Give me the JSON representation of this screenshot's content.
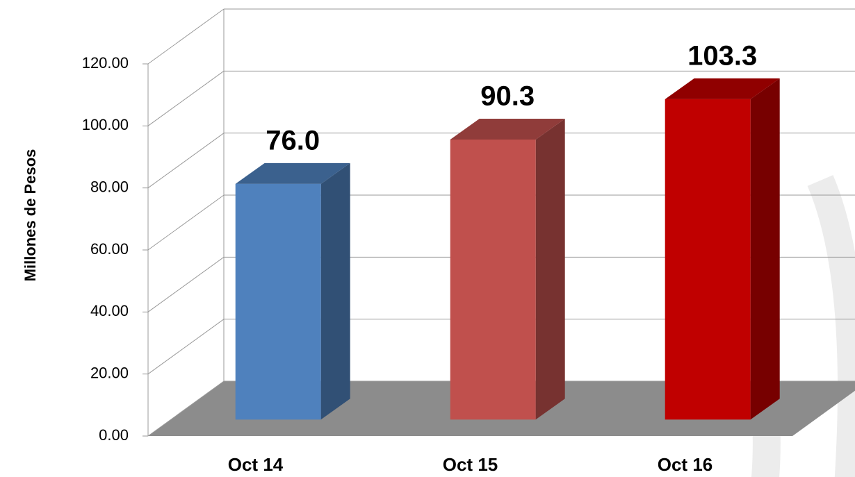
{
  "chart_data": {
    "type": "bar3d",
    "y_label": "Millones de Pesos",
    "categories": [
      "Oct 14",
      "Oct 15",
      "Oct 16"
    ],
    "values": [
      76.0,
      90.3,
      103.3
    ],
    "value_labels": [
      "76.0",
      "90.3",
      "103.3"
    ],
    "colors": [
      "#4f81bd",
      "#c0504d",
      "#c00000"
    ],
    "ylim": [
      0,
      120
    ],
    "yticks": [
      {
        "value": 0,
        "label": "0.00"
      },
      {
        "value": 20,
        "label": "20.00"
      },
      {
        "value": 40,
        "label": "40.00"
      },
      {
        "value": 60,
        "label": "60.00"
      },
      {
        "value": 80,
        "label": "80.00"
      },
      {
        "value": 100,
        "label": "100.00"
      },
      {
        "value": 120,
        "label": "120.00"
      }
    ],
    "grid": true
  }
}
